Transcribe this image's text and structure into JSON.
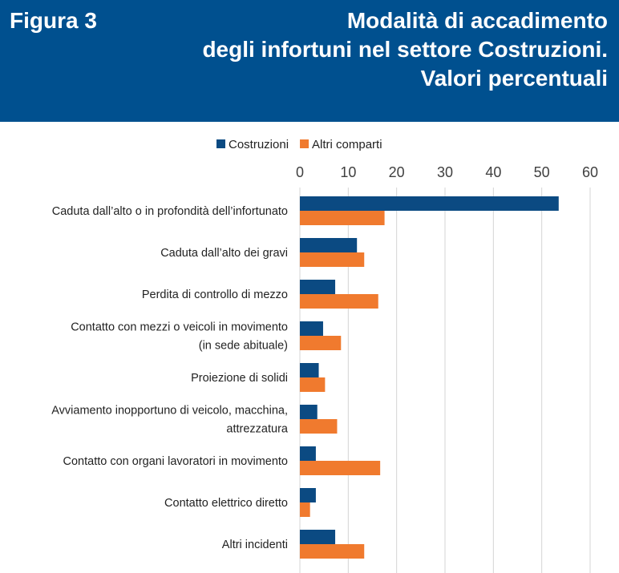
{
  "header": {
    "figure_label": "Figura 3",
    "title_lines": [
      "Modalità di accadimento",
      "degli infortuni nel settore Costruzioni.",
      "Valori percentuali"
    ]
  },
  "colors": {
    "header_bg": "#00508f",
    "costruzioni": "#0b4a82",
    "altri": "#f07a2e",
    "grid": "#d4d4d4"
  },
  "chart_data": {
    "type": "bar",
    "orientation": "horizontal",
    "title": "Modalità di accadimento degli infortuni nel settore Costruzioni. Valori percentuali",
    "xlim": [
      0,
      60
    ],
    "x_ticks": [
      0,
      10,
      20,
      30,
      40,
      50,
      60
    ],
    "x_axis_position": "top",
    "grid": true,
    "legend_position": "top",
    "categories": [
      [
        "Caduta dall’alto o in profondità dell’infortunato"
      ],
      [
        "Caduta dall’alto dei gravi"
      ],
      [
        "Perdita di controllo di mezzo"
      ],
      [
        "Contatto con mezzi o veicoli in movimento",
        "(in sede abituale)"
      ],
      [
        "Proiezione di solidi"
      ],
      [
        "Avviamento inopportuno di veicolo, macchina,",
        "attrezzatura"
      ],
      [
        "Contatto con organi lavoratori in movimento"
      ],
      [
        "Contatto elettrico diretto"
      ],
      [
        "Altri incidenti"
      ]
    ],
    "series": [
      {
        "name": "Costruzioni",
        "color": "#0b4a82",
        "values": [
          53.5,
          11.8,
          7.3,
          4.8,
          3.9,
          3.6,
          3.3,
          3.3,
          7.3
        ]
      },
      {
        "name": "Altri comparti",
        "color": "#f07a2e",
        "values": [
          17.5,
          13.3,
          16.2,
          8.5,
          5.2,
          7.7,
          16.6,
          2.1,
          13.3
        ]
      }
    ]
  }
}
